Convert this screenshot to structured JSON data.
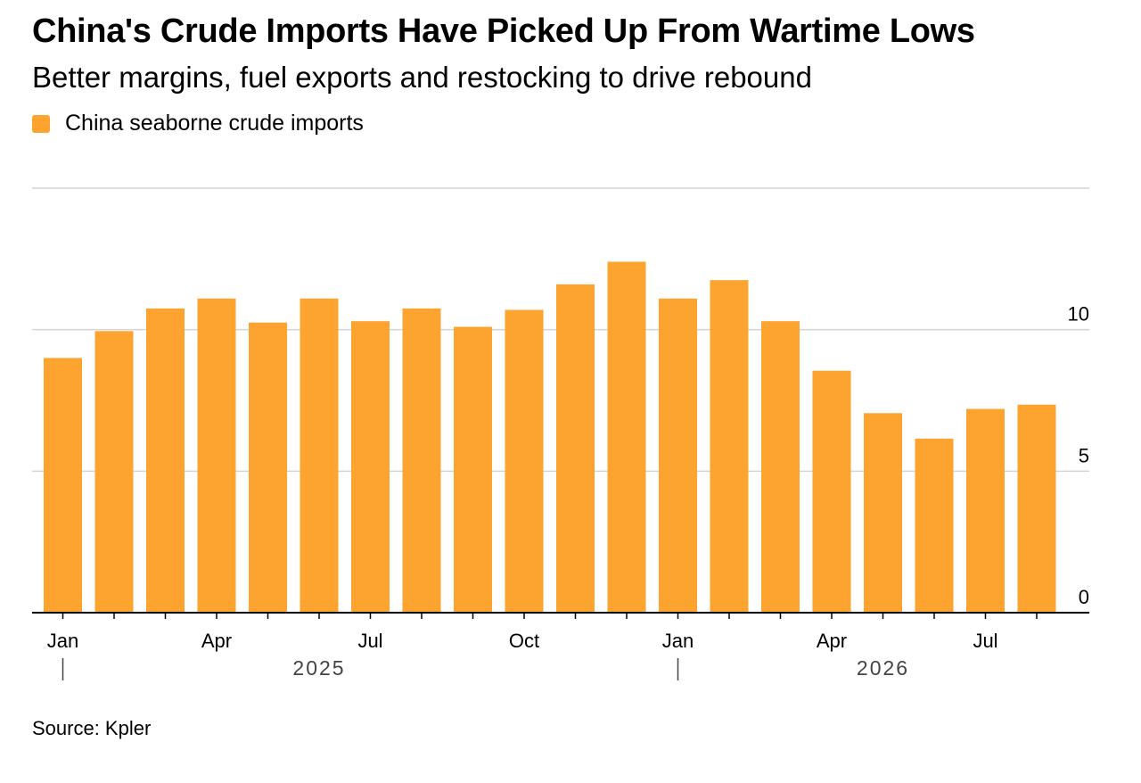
{
  "title": "China's Crude Imports Have Picked Up From Wartime Lows",
  "subtitle": "Better margins, fuel exports and restocking to drive rebound",
  "source": "Source: Kpler",
  "colors": {
    "bar": "#FCA42F",
    "grid": "#d4d4d4",
    "axis": "#000000"
  },
  "chart_data": {
    "type": "bar",
    "legend": {
      "position": "top-left",
      "entries": [
        {
          "name": "China seaborne crude imports",
          "color": "#FCA42F"
        }
      ]
    },
    "x": [
      "2025-01",
      "2025-02",
      "2025-03",
      "2025-04",
      "2025-05",
      "2025-06",
      "2025-07",
      "2025-08",
      "2025-09",
      "2025-10",
      "2025-11",
      "2025-12",
      "2026-01",
      "2026-02",
      "2026-03",
      "2026-04",
      "2026-05",
      "2026-06",
      "2026-07",
      "2026-08"
    ],
    "series": [
      {
        "name": "China seaborne crude imports",
        "values": [
          9.0,
          9.95,
          10.75,
          11.1,
          10.25,
          11.1,
          10.3,
          10.75,
          10.1,
          10.7,
          11.6,
          12.4,
          11.1,
          11.75,
          10.3,
          8.55,
          7.05,
          6.15,
          7.2,
          7.35
        ]
      }
    ],
    "x_tick_labels": [
      {
        "x": "2025-01",
        "label": "Jan"
      },
      {
        "x": "2025-04",
        "label": "Apr"
      },
      {
        "x": "2025-07",
        "label": "Jul"
      },
      {
        "x": "2025-10",
        "label": "Oct"
      },
      {
        "x": "2026-01",
        "label": "Jan"
      },
      {
        "x": "2026-04",
        "label": "Apr"
      },
      {
        "x": "2026-07",
        "label": "Jul"
      }
    ],
    "year_labels": [
      {
        "x": "2025-06",
        "label": "2025"
      },
      {
        "x": "2026-05",
        "label": "2026"
      }
    ],
    "year_separators": [
      "2025-01",
      "2026-01"
    ],
    "y_ticks": [
      0,
      5,
      10
    ],
    "ylim": [
      0,
      15
    ],
    "grid": true,
    "xlabel": "",
    "ylabel": ""
  }
}
